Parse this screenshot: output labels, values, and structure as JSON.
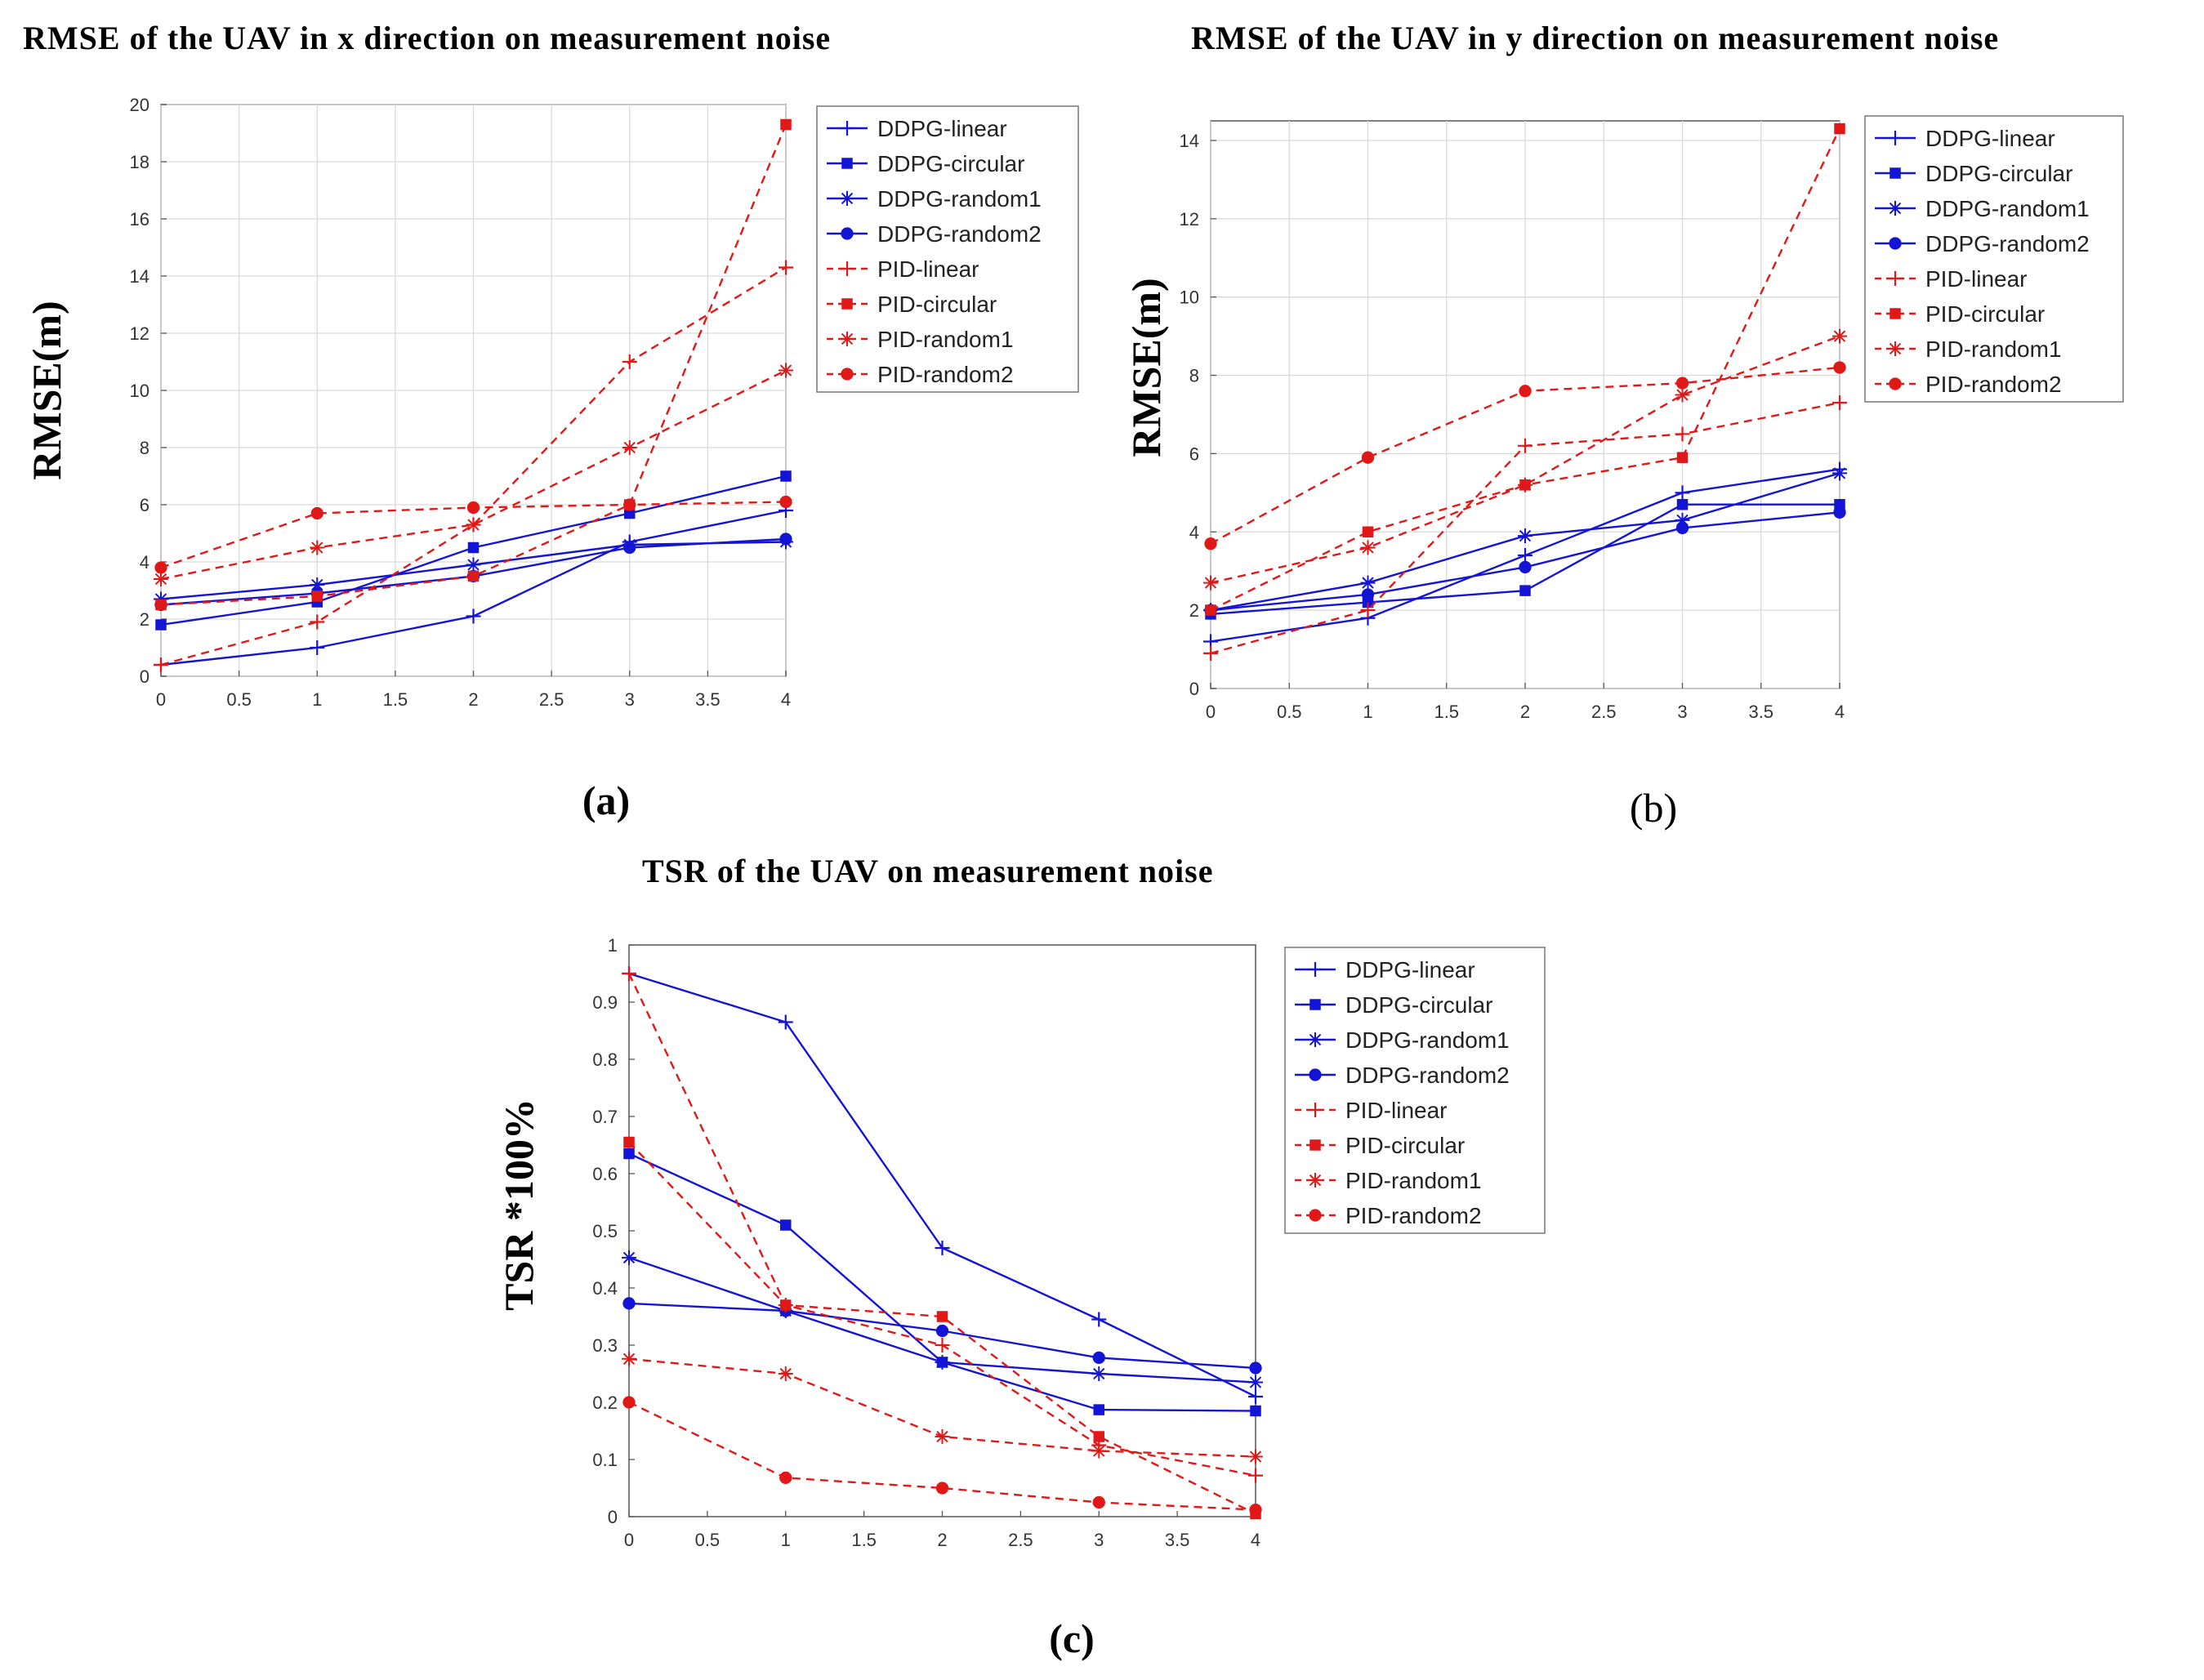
{
  "colors": {
    "ddpg": "#1414d6",
    "pid": "#e01818"
  },
  "series_styles": [
    {
      "name": "DDPG-linear",
      "color": "#1414d6",
      "dash": "solid",
      "marker": "plus-icon"
    },
    {
      "name": "DDPG-circular",
      "color": "#1414d6",
      "dash": "solid",
      "marker": "square-icon"
    },
    {
      "name": "DDPG-random1",
      "color": "#1414d6",
      "dash": "solid",
      "marker": "asterisk-icon"
    },
    {
      "name": "DDPG-random2",
      "color": "#1414d6",
      "dash": "solid",
      "marker": "circle-icon"
    },
    {
      "name": "PID-linear",
      "color": "#e01818",
      "dash": "dashed",
      "marker": "plus-icon"
    },
    {
      "name": "PID-circular",
      "color": "#e01818",
      "dash": "dashed",
      "marker": "square-icon"
    },
    {
      "name": "PID-random1",
      "color": "#e01818",
      "dash": "dashed",
      "marker": "asterisk-icon"
    },
    {
      "name": "PID-random2",
      "color": "#e01818",
      "dash": "dashed",
      "marker": "circle-icon"
    }
  ],
  "chart_data": [
    {
      "type": "line",
      "id": "a",
      "panel_label": "(a)",
      "title": "RMSE of the UAV in x direction on measurement noise",
      "xlabel": "",
      "ylabel": "RMSE(m)",
      "x": [
        0,
        1,
        2,
        3,
        4
      ],
      "xlim": [
        0,
        4
      ],
      "ylim": [
        0,
        20
      ],
      "xticks": [
        "0",
        "0.5",
        "1",
        "1.5",
        "2",
        "2.5",
        "3",
        "3.5",
        "4"
      ],
      "yticks": [
        "0",
        "2",
        "4",
        "6",
        "8",
        "10",
        "12",
        "14",
        "16",
        "18",
        "20"
      ],
      "grid": true,
      "legend_position": "top-right outside",
      "series": [
        {
          "name": "DDPG-linear",
          "values": [
            0.4,
            1.0,
            2.1,
            4.7,
            5.8
          ]
        },
        {
          "name": "DDPG-circular",
          "values": [
            1.8,
            2.6,
            4.5,
            5.7,
            7.0
          ]
        },
        {
          "name": "DDPG-random1",
          "values": [
            2.7,
            3.2,
            3.9,
            4.6,
            4.7
          ]
        },
        {
          "name": "DDPG-random2",
          "values": [
            2.5,
            2.9,
            3.5,
            4.5,
            4.8
          ]
        },
        {
          "name": "PID-linear",
          "values": [
            0.4,
            1.9,
            5.3,
            11.0,
            14.3
          ]
        },
        {
          "name": "PID-circular",
          "values": [
            2.5,
            2.8,
            3.5,
            6.0,
            19.3
          ]
        },
        {
          "name": "PID-random1",
          "values": [
            3.4,
            4.5,
            5.3,
            8.0,
            10.7
          ]
        },
        {
          "name": "PID-random2",
          "values": [
            3.8,
            5.7,
            5.9,
            6.0,
            6.1
          ]
        }
      ]
    },
    {
      "type": "line",
      "id": "b",
      "panel_label": "(b)",
      "title": "RMSE of the UAV in y direction on measurement noise",
      "xlabel": "",
      "ylabel": "RMSE(m)",
      "x": [
        0,
        1,
        2,
        3,
        4
      ],
      "xlim": [
        0,
        4
      ],
      "ylim": [
        0,
        14.5
      ],
      "xticks": [
        "0",
        "0.5",
        "1",
        "1.5",
        "2",
        "2.5",
        "3",
        "3.5",
        "4"
      ],
      "yticks": [
        "0",
        "2",
        "4",
        "6",
        "8",
        "10",
        "12",
        "14"
      ],
      "grid": true,
      "legend_position": "top-right outside",
      "series": [
        {
          "name": "DDPG-linear",
          "values": [
            1.2,
            1.8,
            3.4,
            5.0,
            5.6
          ]
        },
        {
          "name": "DDPG-circular",
          "values": [
            1.9,
            2.2,
            2.5,
            4.7,
            4.7
          ]
        },
        {
          "name": "DDPG-random1",
          "values": [
            2.0,
            2.7,
            3.9,
            4.3,
            5.5
          ]
        },
        {
          "name": "DDPG-random2",
          "values": [
            2.0,
            2.4,
            3.1,
            4.1,
            4.5
          ]
        },
        {
          "name": "PID-linear",
          "values": [
            0.9,
            2.0,
            6.2,
            6.5,
            7.3
          ]
        },
        {
          "name": "PID-circular",
          "values": [
            2.0,
            4.0,
            5.2,
            5.9,
            14.3
          ]
        },
        {
          "name": "PID-random1",
          "values": [
            2.7,
            3.6,
            5.2,
            7.5,
            9.0
          ]
        },
        {
          "name": "PID-random2",
          "values": [
            3.7,
            5.9,
            7.6,
            7.8,
            8.2
          ]
        }
      ]
    },
    {
      "type": "line",
      "id": "c",
      "panel_label": "(c)",
      "title": "TSR of the UAV on measurement noise",
      "xlabel": "",
      "ylabel": "TSR *100%",
      "x": [
        0,
        1,
        2,
        3,
        4
      ],
      "xlim": [
        0,
        4
      ],
      "ylim": [
        0,
        1
      ],
      "xticks": [
        "0",
        "0.5",
        "1",
        "1.5",
        "2",
        "2.5",
        "3",
        "3.5",
        "4"
      ],
      "yticks": [
        "0",
        "0.1",
        "0.2",
        "0.3",
        "0.4",
        "0.5",
        "0.6",
        "0.7",
        "0.8",
        "0.9",
        "1"
      ],
      "grid": false,
      "legend_position": "top-right outside",
      "series": [
        {
          "name": "DDPG-linear",
          "values": [
            0.95,
            0.865,
            0.47,
            0.345,
            0.21
          ]
        },
        {
          "name": "DDPG-circular",
          "values": [
            0.635,
            0.51,
            0.27,
            0.187,
            0.185
          ]
        },
        {
          "name": "DDPG-random1",
          "values": [
            0.453,
            0.36,
            0.27,
            0.25,
            0.235
          ]
        },
        {
          "name": "DDPG-random2",
          "values": [
            0.373,
            0.36,
            0.325,
            0.278,
            0.26
          ]
        },
        {
          "name": "PID-linear",
          "values": [
            0.95,
            0.37,
            0.3,
            0.125,
            0.072
          ]
        },
        {
          "name": "PID-circular",
          "values": [
            0.655,
            0.37,
            0.35,
            0.14,
            0.005
          ]
        },
        {
          "name": "PID-random1",
          "values": [
            0.276,
            0.25,
            0.14,
            0.115,
            0.105
          ]
        },
        {
          "name": "PID-random2",
          "values": [
            0.2,
            0.068,
            0.05,
            0.025,
            0.012
          ]
        }
      ]
    }
  ]
}
